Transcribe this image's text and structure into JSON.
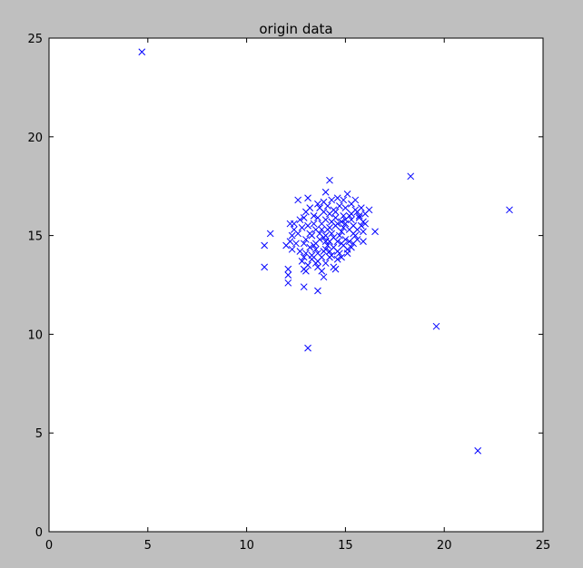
{
  "chart_data": {
    "type": "scatter",
    "title": "origin data",
    "xlabel": "",
    "ylabel": "",
    "xlim": [
      0,
      25
    ],
    "ylim": [
      0,
      25
    ],
    "xticks": [
      "0",
      "5",
      "10",
      "15",
      "20",
      "25"
    ],
    "yticks": [
      "0",
      "5",
      "10",
      "15",
      "20",
      "25"
    ],
    "grid": false,
    "marker": "x",
    "color": "#0000ff",
    "points": [
      [
        4.7,
        24.3
      ],
      [
        18.3,
        18.0
      ],
      [
        23.3,
        16.3
      ],
      [
        19.6,
        10.4
      ],
      [
        21.7,
        4.1
      ],
      [
        13.1,
        9.3
      ],
      [
        10.9,
        14.5
      ],
      [
        10.9,
        13.4
      ],
      [
        11.2,
        15.1
      ],
      [
        12.1,
        13.3
      ],
      [
        12.1,
        13.0
      ],
      [
        12.1,
        12.6
      ],
      [
        12.9,
        12.4
      ],
      [
        13.6,
        12.2
      ],
      [
        14.2,
        17.8
      ],
      [
        16.5,
        15.2
      ],
      [
        13.0,
        14.8
      ],
      [
        13.2,
        15.1
      ],
      [
        13.5,
        14.6
      ],
      [
        13.8,
        15.3
      ],
      [
        14.0,
        15.0
      ],
      [
        14.2,
        15.4
      ],
      [
        14.4,
        14.9
      ],
      [
        14.1,
        14.5
      ],
      [
        13.9,
        14.2
      ],
      [
        14.6,
        15.6
      ],
      [
        14.8,
        15.2
      ],
      [
        15.0,
        15.8
      ],
      [
        15.2,
        16.0
      ],
      [
        15.4,
        15.5
      ],
      [
        15.6,
        16.2
      ],
      [
        15.8,
        16.4
      ],
      [
        16.0,
        16.1
      ],
      [
        16.2,
        16.3
      ],
      [
        15.9,
        15.7
      ],
      [
        15.7,
        15.9
      ],
      [
        13.3,
        14.0
      ],
      [
        13.6,
        13.7
      ],
      [
        13.1,
        13.5
      ],
      [
        12.9,
        13.9
      ],
      [
        12.7,
        14.2
      ],
      [
        12.5,
        14.6
      ],
      [
        12.3,
        15.0
      ],
      [
        12.4,
        15.6
      ],
      [
        12.8,
        15.4
      ],
      [
        13.0,
        16.2
      ],
      [
        12.6,
        16.8
      ],
      [
        13.1,
        16.9
      ],
      [
        13.4,
        16.0
      ],
      [
        13.7,
        16.4
      ],
      [
        13.9,
        16.7
      ],
      [
        14.0,
        17.2
      ],
      [
        14.3,
        16.8
      ],
      [
        14.5,
        16.2
      ],
      [
        14.7,
        16.5
      ],
      [
        15.1,
        17.1
      ],
      [
        15.3,
        16.6
      ],
      [
        15.5,
        16.8
      ],
      [
        15.0,
        16.4
      ],
      [
        14.9,
        16.0
      ],
      [
        14.6,
        14.2
      ],
      [
        14.9,
        14.5
      ],
      [
        15.1,
        14.1
      ],
      [
        15.3,
        14.4
      ],
      [
        15.6,
        14.8
      ],
      [
        15.9,
        14.7
      ],
      [
        14.4,
        13.4
      ],
      [
        14.2,
        13.9
      ],
      [
        14.0,
        13.6
      ],
      [
        13.8,
        13.2
      ],
      [
        13.6,
        13.4
      ],
      [
        14.5,
        13.3
      ],
      [
        13.9,
        12.9
      ],
      [
        13.3,
        13.8
      ],
      [
        13.5,
        14.3
      ],
      [
        13.7,
        14.8
      ],
      [
        13.2,
        14.4
      ],
      [
        12.9,
        14.6
      ],
      [
        12.6,
        15.1
      ],
      [
        12.2,
        14.7
      ],
      [
        12.0,
        14.5
      ],
      [
        12.3,
        14.3
      ],
      [
        12.8,
        13.7
      ],
      [
        13.0,
        13.2
      ],
      [
        12.9,
        13.3
      ],
      [
        13.4,
        15.6
      ],
      [
        13.6,
        15.9
      ],
      [
        13.8,
        15.6
      ],
      [
        14.0,
        15.8
      ],
      [
        14.2,
        16.1
      ],
      [
        14.1,
        15.3
      ],
      [
        14.3,
        15.1
      ],
      [
        14.5,
        15.5
      ],
      [
        14.7,
        15.0
      ],
      [
        14.9,
        15.4
      ],
      [
        15.2,
        15.3
      ],
      [
        15.4,
        15.1
      ],
      [
        15.0,
        14.8
      ],
      [
        14.8,
        14.6
      ],
      [
        14.6,
        14.7
      ],
      [
        14.4,
        14.4
      ],
      [
        14.2,
        14.7
      ],
      [
        13.9,
        14.9
      ],
      [
        13.7,
        15.1
      ],
      [
        13.5,
        15.3
      ],
      [
        13.3,
        15.0
      ],
      [
        14.0,
        14.3
      ],
      [
        14.1,
        16.5
      ],
      [
        14.3,
        15.7
      ],
      [
        14.5,
        15.9
      ],
      [
        14.8,
        15.7
      ],
      [
        15.0,
        15.6
      ],
      [
        15.3,
        15.8
      ],
      [
        15.5,
        16.3
      ],
      [
        15.7,
        16.0
      ],
      [
        15.8,
        15.5
      ],
      [
        16.0,
        15.6
      ],
      [
        15.6,
        15.3
      ],
      [
        15.2,
        14.7
      ],
      [
        14.7,
        14.1
      ],
      [
        14.3,
        14.0
      ],
      [
        13.8,
        13.9
      ],
      [
        13.4,
        14.5
      ],
      [
        13.1,
        15.5
      ],
      [
        12.7,
        15.8
      ],
      [
        12.4,
        15.3
      ],
      [
        14.6,
        16.9
      ],
      [
        13.9,
        16.2
      ],
      [
        13.6,
        16.6
      ],
      [
        14.8,
        13.9
      ],
      [
        15.1,
        14.3
      ],
      [
        15.4,
        14.6
      ],
      [
        15.5,
        15.0
      ],
      [
        15.9,
        15.2
      ],
      [
        13.2,
        16.4
      ],
      [
        12.9,
        15.9
      ],
      [
        14.2,
        14.2
      ],
      [
        14.0,
        14.7
      ],
      [
        13.6,
        14.1
      ],
      [
        14.4,
        16.3
      ],
      [
        14.9,
        16.8
      ],
      [
        15.3,
        16.1
      ],
      [
        14.6,
        13.8
      ],
      [
        13.5,
        13.6
      ],
      [
        13.0,
        14.1
      ],
      [
        12.2,
        15.6
      ]
    ]
  }
}
